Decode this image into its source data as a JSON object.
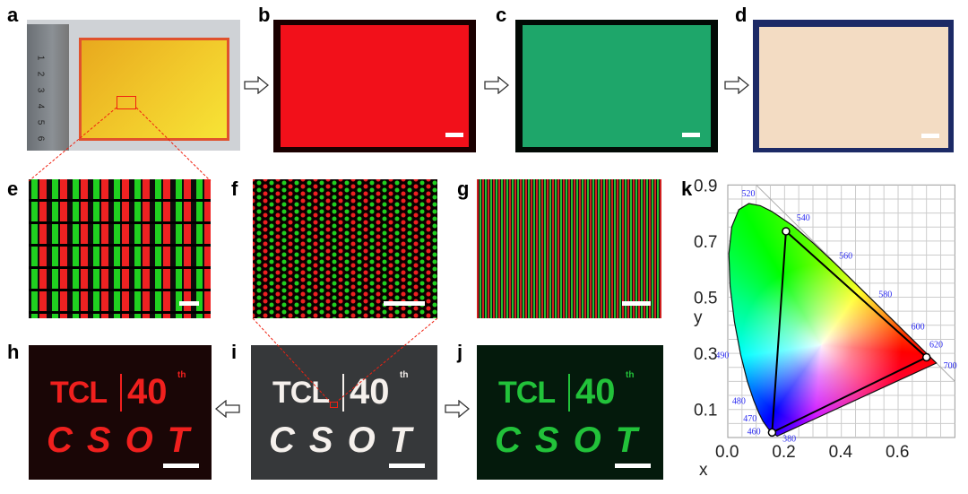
{
  "panel_labels": {
    "a": "a",
    "b": "b",
    "c": "c",
    "d": "d",
    "e": "e",
    "f": "f",
    "g": "g",
    "h": "h",
    "i": "i",
    "j": "j",
    "k": "k"
  },
  "ruler_numbers": [
    "1",
    "2",
    "3",
    "4",
    "5",
    "6",
    "7"
  ],
  "logo": {
    "brand": "TCL",
    "anniversary": "40",
    "superscript": "th",
    "sub": "CSOT"
  },
  "colors": {
    "red_emission": "#f2101a",
    "green_emission": "#1ea66a",
    "white_emission": "#f3dcc3",
    "panel_yellow": "#f1c72a"
  },
  "icons": {
    "arrow_right": "hollow-arrow-right-icon",
    "arrow_left": "hollow-arrow-left-icon"
  },
  "chart_data": {
    "type": "scatter",
    "title": "",
    "xlabel": "x",
    "ylabel": "y",
    "xlim": [
      0,
      0.8
    ],
    "ylim": [
      0,
      0.9
    ],
    "x_ticks": [
      "0.0",
      "0.2",
      "0.4",
      "0.6"
    ],
    "y_ticks": [
      "0.1",
      "0.3",
      "0.5",
      "0.7",
      "0.9"
    ],
    "grid": true,
    "wavelength_labels": [
      "380",
      "460",
      "470",
      "480",
      "490",
      "520",
      "540",
      "560",
      "580",
      "600",
      "620",
      "700"
    ],
    "gamut_triangle": [
      {
        "x": 0.205,
        "y": 0.735
      },
      {
        "x": 0.7,
        "y": 0.286
      },
      {
        "x": 0.156,
        "y": 0.018
      }
    ]
  }
}
